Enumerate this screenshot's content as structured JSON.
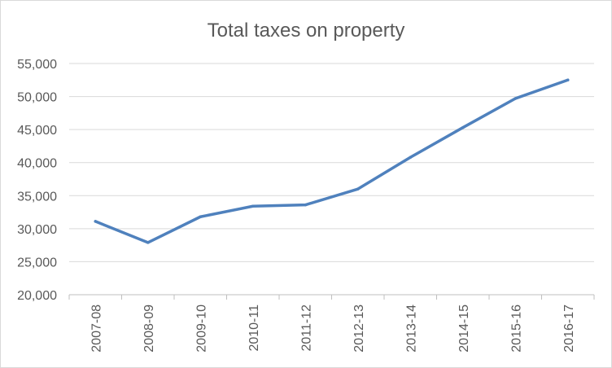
{
  "chart_data": {
    "type": "line",
    "title": "Total taxes on property",
    "xlabel": "",
    "ylabel": "",
    "categories": [
      "2007-08",
      "2008-09",
      "2009-10",
      "2010-11",
      "2011-12",
      "2012-13",
      "2013-14",
      "2014-15",
      "2015-16",
      "2016-17"
    ],
    "series": [
      {
        "values": [
          31100,
          27900,
          31800,
          33400,
          33600,
          36000,
          40800,
          45300,
          49700,
          52500
        ]
      }
    ],
    "ylim": [
      20000,
      55000
    ],
    "yticks": [
      20000,
      25000,
      30000,
      35000,
      40000,
      45000,
      50000,
      55000
    ],
    "ytick_labels": [
      "20,000",
      "25,000",
      "30,000",
      "35,000",
      "40,000",
      "45,000",
      "50,000",
      "55,000"
    ],
    "grid": true,
    "legend": "none",
    "colors": {
      "line": "#4f81bd",
      "grid": "#d9d9d9",
      "axis": "#bfbfbf",
      "text": "#595959"
    }
  }
}
